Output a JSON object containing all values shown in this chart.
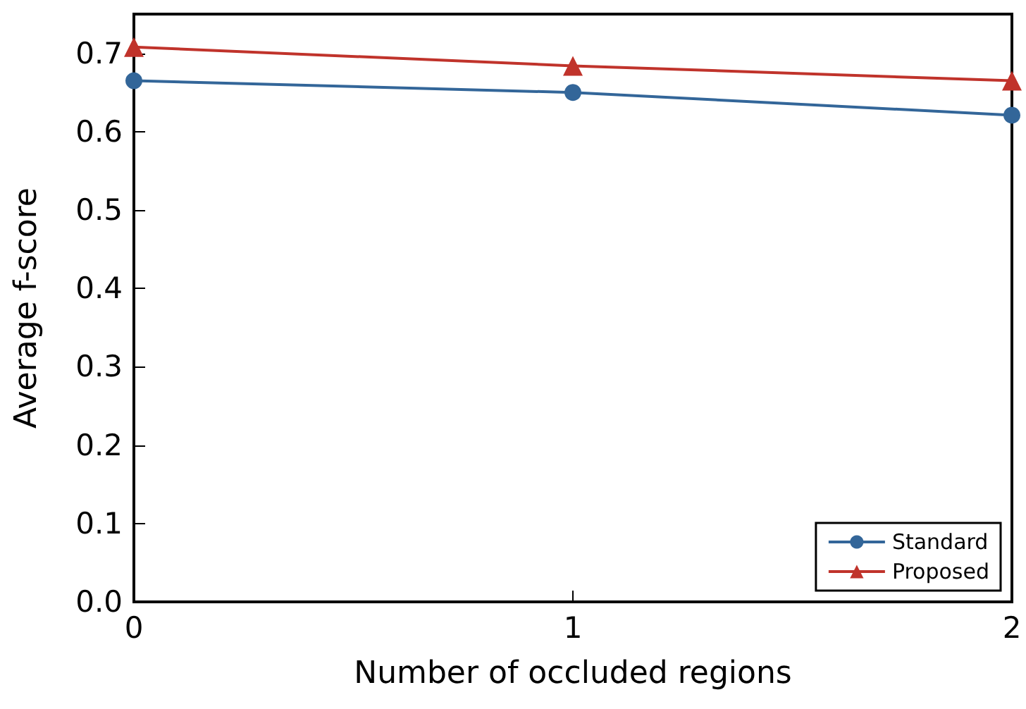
{
  "chart_data": {
    "type": "line",
    "xlabel": "Number of occluded regions",
    "ylabel": "Average f-score",
    "x": [
      0,
      1,
      2
    ],
    "xlim": [
      0,
      2
    ],
    "xticks": [
      0,
      1,
      2
    ],
    "ylim": [
      0,
      0.75
    ],
    "yticks": [
      {
        "value": 0,
        "label": "0.0"
      },
      0.1,
      0.2,
      0.3,
      0.4,
      0.5,
      0.6,
      0.7
    ],
    "series": [
      {
        "name": "Standard",
        "color": "#336699",
        "marker": "circle",
        "values": [
          0.665,
          0.65,
          0.621
        ]
      },
      {
        "name": "Proposed",
        "color": "#c0332b",
        "marker": "triangle",
        "values": [
          0.708,
          0.684,
          0.665
        ]
      }
    ],
    "grid": false,
    "legend": "bottom right",
    "line_style": "solid"
  }
}
